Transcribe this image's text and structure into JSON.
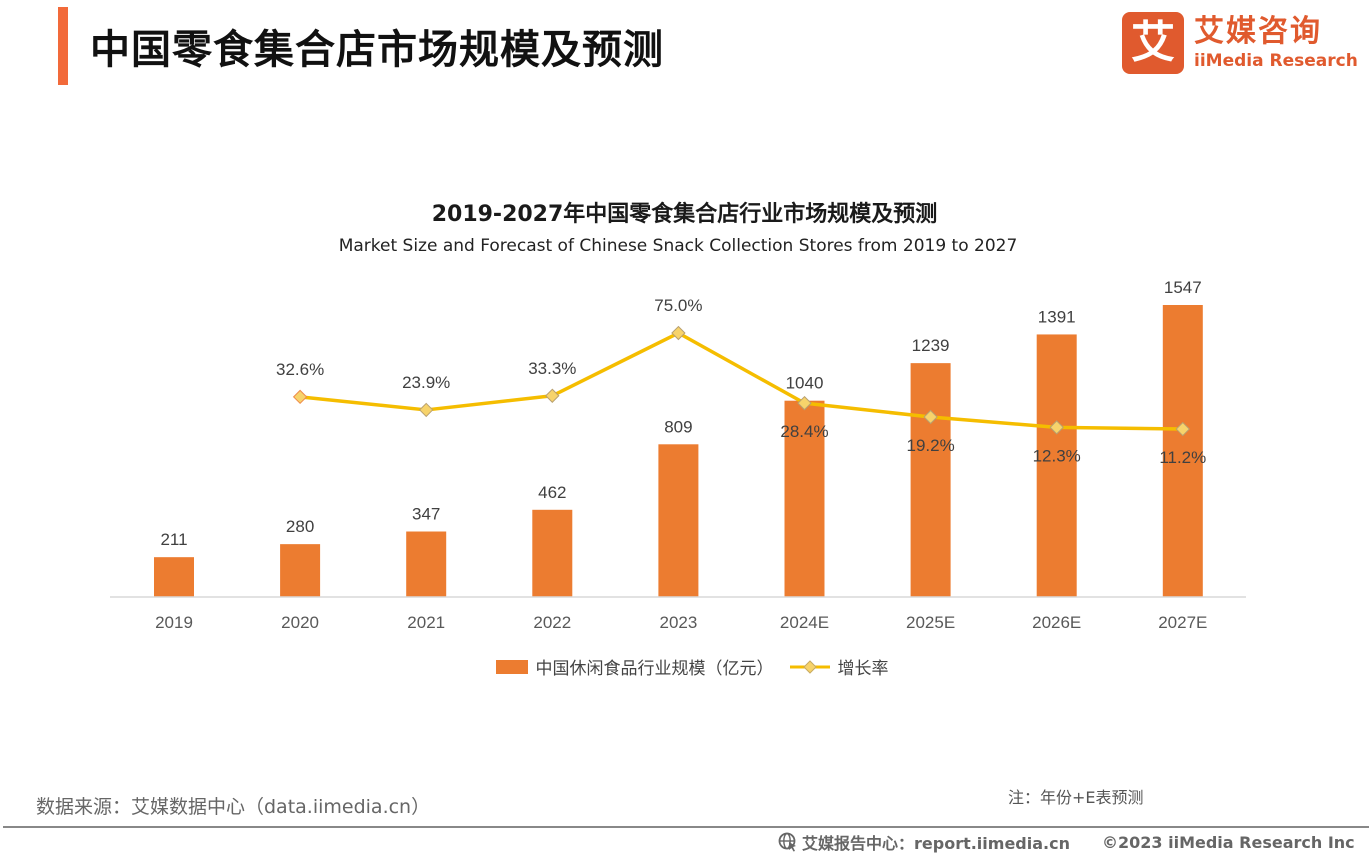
{
  "header": {
    "title": "中国零食集合店市场规模及预测",
    "logo_mark": "艾",
    "logo_cn": "艾媒咨询",
    "logo_en": "iiMedia Research",
    "accent_color": "#f26a3a"
  },
  "chart_data": {
    "type": "bar+line",
    "title": "2019-2027年中国零食集合店行业市场规模及预测",
    "subtitle": "Market Size and Forecast of Chinese Snack Collection Stores from 2019 to 2027",
    "categories": [
      "2019",
      "2020",
      "2021",
      "2022",
      "2023",
      "2024E",
      "2025E",
      "2026E",
      "2027E"
    ],
    "series": [
      {
        "name": "中国休闲食品行业规模（亿元）",
        "type": "bar",
        "color": "#ec7c30",
        "values": [
          211,
          280,
          347,
          462,
          809,
          1040,
          1239,
          1391,
          1547
        ],
        "labels": [
          "211",
          "280",
          "347",
          "462",
          "809",
          "1040",
          "1239",
          "1391",
          "1547"
        ]
      },
      {
        "name": "增长率",
        "type": "line",
        "color": "#f5bd00",
        "marker": "diamond",
        "marker_color": "#f7d36b",
        "values": [
          null,
          32.6,
          23.9,
          33.3,
          75.0,
          28.4,
          19.2,
          12.3,
          11.2
        ],
        "labels": [
          "",
          "32.6%",
          "23.9%",
          "33.3%",
          "75.0%",
          "28.4%",
          "19.2%",
          "12.3%",
          "11.2%"
        ],
        "unit": "%"
      }
    ],
    "xlabel": "",
    "ylabel": "",
    "grid": false,
    "legend_position": "bottom"
  },
  "legend": {
    "bar_label": "中国休闲食品行业规模（亿元）",
    "line_label": "增长率"
  },
  "footer": {
    "source": "数据来源：艾媒数据中心（data.iimedia.cn）",
    "note": "注：年份+E表预测",
    "report_center": "艾媒报告中心：report.iimedia.cn",
    "copyright": "©2023  iiMedia Research  Inc"
  }
}
